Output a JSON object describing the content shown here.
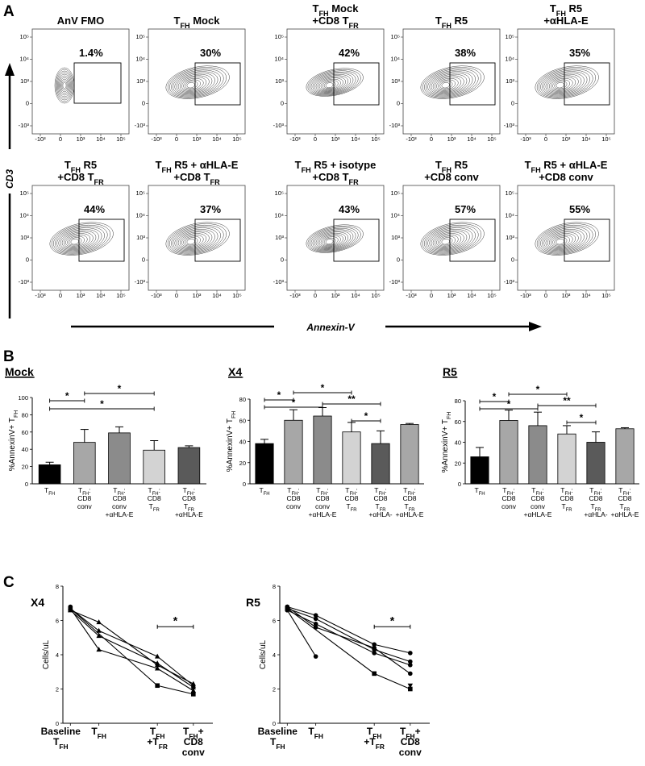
{
  "panels": {
    "a": "A",
    "b": "B",
    "c": "C"
  },
  "panel_a": {
    "y_axis_label": "CD3",
    "x_axis_label": "Annexin-V",
    "plots": [
      {
        "title": "AnV FMO",
        "pct": "1.4%"
      },
      {
        "title": "T|FH| Mock",
        "pct": "30%"
      },
      {
        "title": "T|FH| Mock\n+CD8 T|FR",
        "pct": "42%"
      },
      {
        "title": "T|FH| R5",
        "pct": "38%"
      },
      {
        "title": "T|FH| R5\n+αHLA-E",
        "pct": "35%"
      },
      {
        "title": "T|FH| R5\n+CD8 T|FR",
        "pct": "44%"
      },
      {
        "title": "T|FH| R5 + αHLA-E\n+CD8 T|FR",
        "pct": "37%"
      },
      {
        "title": "T|FH| R5 + isotype\n+CD8 T|FR",
        "pct": "43%"
      },
      {
        "title": "T|FH| R5\n+CD8 conv",
        "pct": "57%"
      },
      {
        "title": "T|FH| R5 + αHLA-E\n+CD8 conv",
        "pct": "55%"
      }
    ]
  },
  "chart_data": [
    {
      "type": "bar",
      "title": "Mock",
      "ylabel": "%AnnexinV+ T|FH",
      "ylim": [
        0,
        100
      ],
      "yticks": [
        0,
        20,
        40,
        60,
        80,
        100
      ],
      "categories": [
        "T|FH",
        "T|FH|:\nCD8\nconv",
        "T|FH|:\nCD8\nconv\n+αHLA-E",
        "T|FH|:\nCD8\nT|FR",
        "T|FH|:\nCD8\nT|FR\n+αHLA-E"
      ],
      "values": [
        22,
        48,
        59,
        39,
        42
      ],
      "errors": [
        3,
        15,
        7,
        11,
        2
      ],
      "colors": [
        "#000000",
        "#a7a7a7",
        "#8b8b8b",
        "#d3d3d3",
        "#5a5a5a"
      ],
      "significance": [
        {
          "from": 0,
          "to": 1,
          "label": "*"
        },
        {
          "from": 1,
          "to": 3,
          "label": "*"
        },
        {
          "from": 0,
          "to": 3,
          "label": "*"
        }
      ]
    },
    {
      "type": "bar",
      "title": "X4",
      "ylabel": "%AnnexinV+ T|FH",
      "ylim": [
        0,
        80
      ],
      "yticks": [
        0,
        20,
        40,
        60,
        80
      ],
      "categories": [
        "T|FH",
        "T|FH|:\nCD8\nconv",
        "T|FH|:\nCD8\nconv\n+αHLA-E",
        "T|FH|:\nCD8\nT|FR",
        "T|FH|:\nCD8\nT|FR\n+αHLA-",
        "T|FH|:\nCD8\nT|FR\n+αHLA-E"
      ],
      "values": [
        38,
        60,
        64,
        49,
        38,
        56
      ],
      "errors": [
        4,
        10,
        8,
        9,
        12,
        1
      ],
      "colors": [
        "#000000",
        "#a7a7a7",
        "#8b8b8b",
        "#d3d3d3",
        "#5a5a5a",
        "#a7a7a7"
      ],
      "significance": [
        {
          "from": 0,
          "to": 1,
          "label": "*"
        },
        {
          "from": 1,
          "to": 3,
          "label": "*"
        },
        {
          "from": 0,
          "to": 2,
          "label": "*"
        },
        {
          "from": 2,
          "to": 4,
          "label": "**"
        },
        {
          "from": 3,
          "to": 4,
          "label": "*"
        }
      ]
    },
    {
      "type": "bar",
      "title": "R5",
      "ylabel": "%AnnexinV+ T|FH",
      "ylim": [
        0,
        80
      ],
      "yticks": [
        0,
        20,
        40,
        60,
        80
      ],
      "categories": [
        "T|FH",
        "T|FH|:\nCD8\nconv",
        "T|FH|:\nCD8\nconv\n+αHLA-E",
        "T|FH|:\nCD8\nT|FR",
        "T|FH|:\nCD8\nT|FR\n+αHLA-",
        "T|FH|:\nCD8\nT|FR\n+αHLA-E"
      ],
      "values": [
        26,
        61,
        56,
        48,
        40,
        53
      ],
      "errors": [
        9,
        10,
        13,
        8,
        10,
        1
      ],
      "colors": [
        "#000000",
        "#a7a7a7",
        "#8b8b8b",
        "#d3d3d3",
        "#5a5a5a",
        "#a7a7a7"
      ],
      "significance": [
        {
          "from": 0,
          "to": 1,
          "label": "*"
        },
        {
          "from": 1,
          "to": 3,
          "label": "*"
        },
        {
          "from": 0,
          "to": 2,
          "label": "*"
        },
        {
          "from": 2,
          "to": 4,
          "label": "**"
        },
        {
          "from": 3,
          "to": 4,
          "label": "*"
        }
      ]
    },
    {
      "type": "line",
      "title": "X4",
      "ylabel": "Cells/uL",
      "ylim": [
        0,
        8
      ],
      "yticks": [
        0,
        2,
        4,
        6,
        8
      ],
      "categories": [
        "Baseline\nT|FH",
        "T|FH",
        "T|FH\n+T|FR",
        "T|FH|+\nCD8\nconv"
      ],
      "series": [
        {
          "marker": "circle",
          "values": [
            6.8,
            null,
            null,
            null
          ]
        },
        {
          "marker": "triangle",
          "values": [
            6.6,
            5.9,
            3.4,
            2.3
          ]
        },
        {
          "marker": "triangle",
          "values": [
            6.7,
            5.4,
            3.9,
            2.2
          ]
        },
        {
          "marker": "triangle",
          "values": [
            6.6,
            5.1,
            3.5,
            2.1
          ]
        },
        {
          "marker": "triangle",
          "values": [
            6.7,
            4.3,
            3.2,
            1.9
          ]
        },
        {
          "marker": "square",
          "values": [
            6.7,
            null,
            2.2,
            1.7
          ]
        }
      ],
      "significance": [
        {
          "from": 2,
          "to": 3,
          "label": "*"
        }
      ]
    },
    {
      "type": "line",
      "title": "R5",
      "ylabel": "Cells/uL",
      "ylim": [
        0,
        8
      ],
      "yticks": [
        0,
        2,
        4,
        6,
        8
      ],
      "categories": [
        "Baseline\nT|FH",
        "T|FH",
        "T|FH\n+T|FR",
        "T|FH|+\nCD8\nconv"
      ],
      "series": [
        {
          "marker": "circle",
          "values": [
            6.8,
            6.3,
            4.6,
            4.1
          ]
        },
        {
          "marker": "circle",
          "values": [
            6.7,
            6.1,
            4.3,
            3.6
          ]
        },
        {
          "marker": "circle",
          "values": [
            6.6,
            5.8,
            4.1,
            3.4
          ]
        },
        {
          "marker": "circle",
          "values": [
            6.8,
            5.6,
            4.4,
            2.9
          ]
        },
        {
          "marker": "circle",
          "values": [
            6.6,
            3.9,
            null,
            null
          ]
        },
        {
          "marker": "square",
          "values": [
            6.7,
            null,
            2.9,
            2.0
          ]
        },
        {
          "marker": "triangle-down",
          "values": [
            null,
            null,
            null,
            2.2
          ]
        }
      ],
      "significance": [
        {
          "from": 2,
          "to": 3,
          "label": "*"
        }
      ]
    }
  ]
}
